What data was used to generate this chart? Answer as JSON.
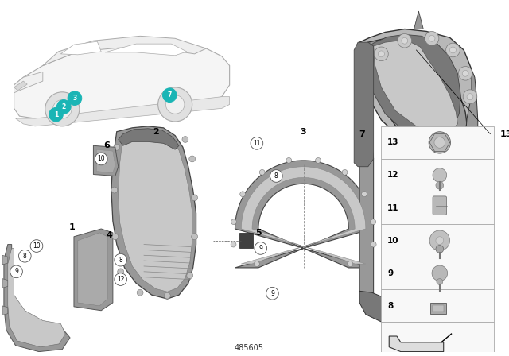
{
  "bg_color": "#ffffff",
  "part_number": "485605",
  "teal_color": "#1ab5b5",
  "gray1": "#b8b8b8",
  "gray2": "#989898",
  "gray3": "#787878",
  "gray4": "#c8c8c8",
  "gray5": "#d8d8d8",
  "dark_gray": "#555555",
  "edge_color": "#444444",
  "car_edge": "#aaaaaa",
  "car_fill": "#f0f0f0",
  "panel_bg": "#f5f5f5",
  "panel_border": "#999999"
}
